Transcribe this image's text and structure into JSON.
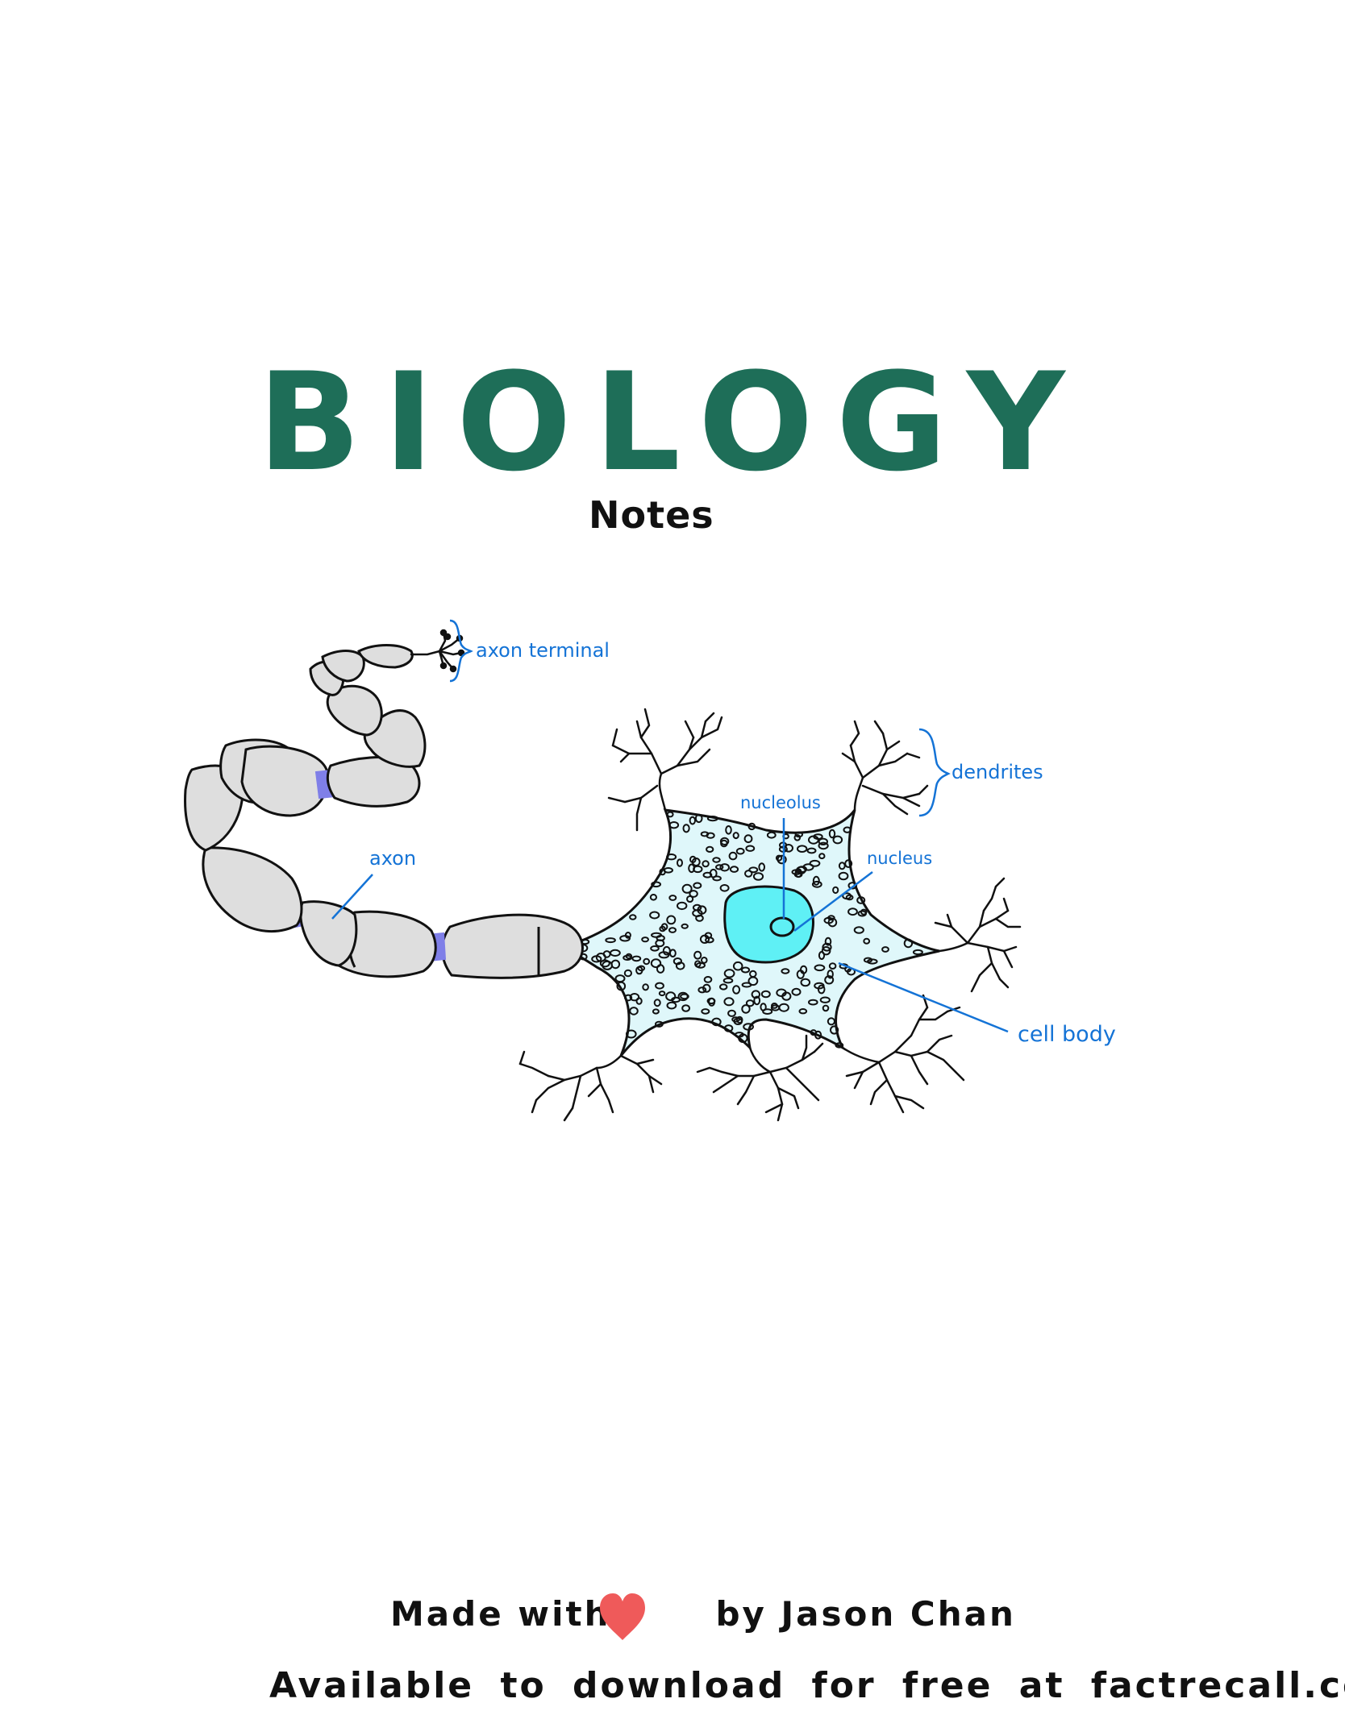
{
  "header": {
    "title": "BIOLOGY",
    "subtitle": "Notes"
  },
  "diagram": {
    "labels": {
      "axon_terminal": "axon terminal",
      "dendrites": "dendrites",
      "nucleolus": "nucleolus",
      "nucleus": "nucleus",
      "axon": "axon",
      "cell_body": "cell body"
    },
    "colors": {
      "label": "#1473d6",
      "cell_body": "#dff7fa",
      "nucleus": "#5ff0f5",
      "myelin": "#dedede",
      "node": "#7f7fe8",
      "title": "#1e6e58",
      "heart": "#ef5a5a"
    }
  },
  "footer": {
    "made_with": "Made with",
    "by_author": "by Jason Chan",
    "heart_icon": "heart-icon",
    "download_text": "Available to download for free at factrecall.com"
  }
}
